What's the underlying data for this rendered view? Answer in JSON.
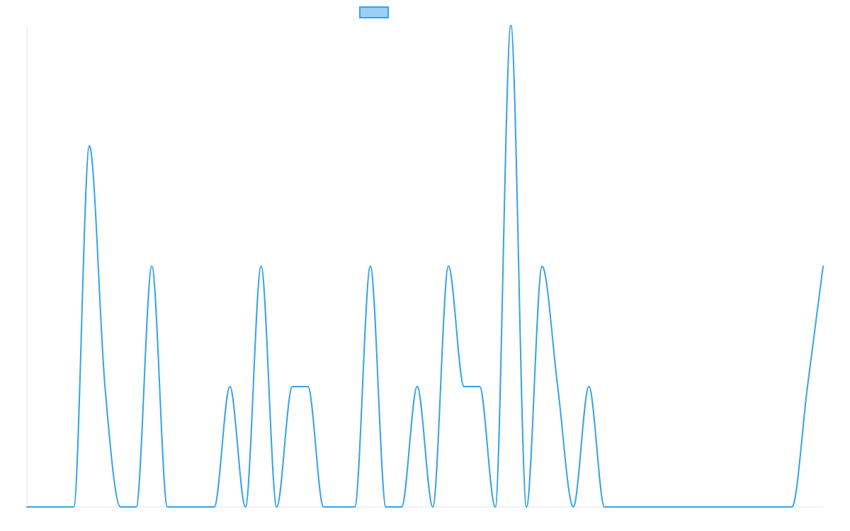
{
  "chart_data": {
    "type": "line",
    "title": "",
    "xlabel": "",
    "ylabel": "",
    "grid": false,
    "legend_position": "top-center",
    "x": [
      0,
      1,
      2,
      3,
      4,
      5,
      6,
      7,
      8,
      9,
      10,
      11,
      12,
      13,
      14,
      15,
      16,
      17,
      18,
      19,
      20,
      21,
      22,
      23,
      24,
      25,
      26,
      27,
      28,
      29,
      30,
      31,
      32,
      33,
      34,
      35,
      36,
      37,
      38,
      39,
      40,
      41,
      42,
      43,
      44,
      45,
      46,
      47,
      48,
      49,
      50,
      51
    ],
    "ylim": [
      0,
      4
    ],
    "series": [
      {
        "color": "#36a2eb",
        "fill_color": "#9ad0f5",
        "values": [
          0,
          0,
          0,
          0,
          3,
          1,
          0,
          0,
          2,
          0,
          0,
          0,
          0,
          1,
          0,
          2,
          0,
          1,
          1,
          0,
          0,
          0,
          2,
          0,
          0,
          1,
          0,
          2,
          1,
          1,
          0,
          4,
          0,
          2,
          1,
          0,
          1,
          0,
          0,
          0,
          0,
          0,
          0,
          0,
          0,
          0,
          0,
          0,
          0,
          0,
          1,
          2
        ]
      }
    ]
  }
}
